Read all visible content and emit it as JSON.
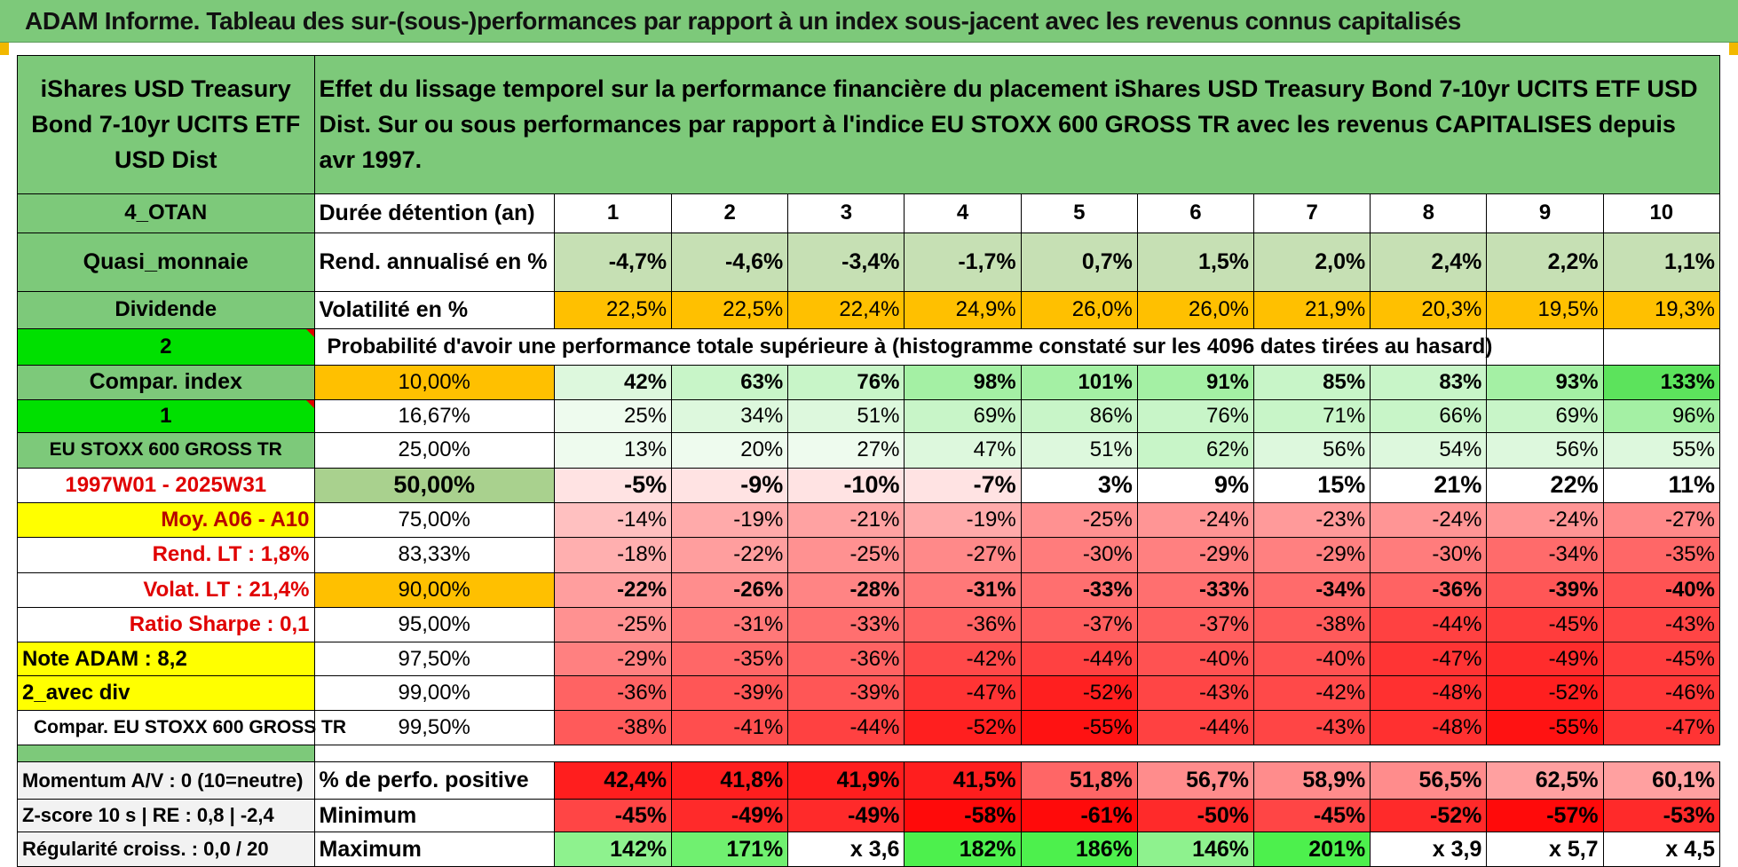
{
  "title": "ADAM Informe. Tableau des sur-(sous-)performances par rapport à un index sous-jacent avec les revenus connus capitalisés",
  "fund_name": "iShares USD Treasury Bond 7-10yr UCITS ETF USD Dist",
  "description": "Effet du lissage temporel sur la performance financière du placement iShares USD Treasury Bond 7-10yr UCITS ETF USD Dist. Sur ou sous performances par rapport à l'indice EU STOXX 600 GROSS TR avec les revenus CAPITALISES depuis avr 1997.",
  "left_panel": {
    "category": "4_OTAN",
    "asset_class": "Quasi_monnaie",
    "income_type": "Dividende",
    "selector_1": "2",
    "compar_index_label": "Compar. index",
    "selector_2": "1",
    "index_name": "EU STOXX 600 GROSS TR",
    "period": "1997W01 - 2025W31",
    "moy": "Moy. A06 - A10",
    "rend_lt": "Rend. LT :    1,8%",
    "volat_lt": "Volat. LT :    21,4%",
    "sharpe": "Ratio Sharpe :     0,1",
    "note": "Note ADAM : 8,2",
    "div_mode": "2_avec div",
    "compar_full": "Compar. EU STOXX 600 GROSS TR",
    "momentum": "Momentum A/V : 0 (10=neutre)",
    "zscore": "Z-score 10 s | RE : 0,8 | -2,4",
    "regularite": "Régularité croiss. : 0,0 / 20"
  },
  "labels": {
    "duree": "Durée détention (an)",
    "rend": "Rend. annualisé en %",
    "vol": "Volatilité en %",
    "proba": "Probabilité d'avoir une performance totale supérieure à (histogramme constaté sur les 4096 dates tirées au hasard)",
    "pos": "% de perfo. positive",
    "min": "Minimum",
    "max": "Maximum"
  },
  "years": [
    "1",
    "2",
    "3",
    "4",
    "5",
    "6",
    "7",
    "8",
    "9",
    "10"
  ],
  "rend": [
    "-4,7%",
    "-4,6%",
    "-3,4%",
    "-1,7%",
    "0,7%",
    "1,5%",
    "2,0%",
    "2,4%",
    "2,2%",
    "1,1%"
  ],
  "vol": [
    "22,5%",
    "22,5%",
    "22,4%",
    "24,9%",
    "26,0%",
    "26,0%",
    "21,9%",
    "20,3%",
    "19,5%",
    "19,3%"
  ],
  "percentiles": [
    {
      "p": "10,00%",
      "v": [
        "42%",
        "63%",
        "76%",
        "98%",
        "101%",
        "91%",
        "85%",
        "83%",
        "93%",
        "133%"
      ]
    },
    {
      "p": "16,67%",
      "v": [
        "25%",
        "34%",
        "51%",
        "69%",
        "86%",
        "76%",
        "71%",
        "66%",
        "69%",
        "96%"
      ]
    },
    {
      "p": "25,00%",
      "v": [
        "13%",
        "20%",
        "27%",
        "47%",
        "51%",
        "62%",
        "56%",
        "54%",
        "56%",
        "55%"
      ]
    },
    {
      "p": "50,00%",
      "v": [
        "-5%",
        "-9%",
        "-10%",
        "-7%",
        "3%",
        "9%",
        "15%",
        "21%",
        "22%",
        "11%"
      ]
    },
    {
      "p": "75,00%",
      "v": [
        "-14%",
        "-19%",
        "-21%",
        "-19%",
        "-25%",
        "-24%",
        "-23%",
        "-24%",
        "-24%",
        "-27%"
      ]
    },
    {
      "p": "83,33%",
      "v": [
        "-18%",
        "-22%",
        "-25%",
        "-27%",
        "-30%",
        "-29%",
        "-29%",
        "-30%",
        "-34%",
        "-35%"
      ]
    },
    {
      "p": "90,00%",
      "v": [
        "-22%",
        "-26%",
        "-28%",
        "-31%",
        "-33%",
        "-33%",
        "-34%",
        "-36%",
        "-39%",
        "-40%"
      ]
    },
    {
      "p": "95,00%",
      "v": [
        "-25%",
        "-31%",
        "-33%",
        "-36%",
        "-37%",
        "-37%",
        "-38%",
        "-44%",
        "-45%",
        "-43%"
      ]
    },
    {
      "p": "97,50%",
      "v": [
        "-29%",
        "-35%",
        "-36%",
        "-42%",
        "-44%",
        "-40%",
        "-40%",
        "-47%",
        "-49%",
        "-45%"
      ]
    },
    {
      "p": "99,00%",
      "v": [
        "-36%",
        "-39%",
        "-39%",
        "-47%",
        "-52%",
        "-43%",
        "-42%",
        "-48%",
        "-52%",
        "-46%"
      ]
    },
    {
      "p": "99,50%",
      "v": [
        "-38%",
        "-41%",
        "-44%",
        "-52%",
        "-55%",
        "-44%",
        "-43%",
        "-48%",
        "-55%",
        "-47%"
      ]
    }
  ],
  "pos": [
    "42,4%",
    "41,8%",
    "41,9%",
    "41,5%",
    "51,8%",
    "56,7%",
    "58,9%",
    "56,5%",
    "62,5%",
    "60,1%"
  ],
  "min": [
    "-45%",
    "-49%",
    "-49%",
    "-58%",
    "-61%",
    "-50%",
    "-45%",
    "-52%",
    "-57%",
    "-53%"
  ],
  "max": [
    "142%",
    "171%",
    "x 3,6",
    "182%",
    "186%",
    "146%",
    "201%",
    "x 3,9",
    "x 5,7",
    "x 4,5"
  ],
  "colors": {
    "header_green": "#7dc97a",
    "bright_green": "#00e000",
    "yellow": "#ffff00",
    "orange": "#ffc000",
    "label_red": "#e00000"
  }
}
